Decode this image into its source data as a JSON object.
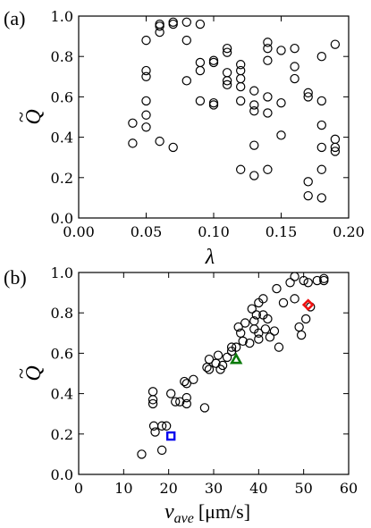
{
  "chart_data": [
    {
      "type": "scatter",
      "panel_label": "(a)",
      "xlabel": "λ",
      "ylabel_main": "Q",
      "ylabel_accent": "~",
      "xlim": [
        0.0,
        0.2
      ],
      "ylim": [
        0.0,
        1.0
      ],
      "xticks": [
        "0.00",
        "0.05",
        "0.10",
        "0.15",
        "0.20"
      ],
      "yticks": [
        "0.0",
        "0.2",
        "0.4",
        "0.6",
        "0.8",
        "1.0"
      ],
      "grid": false,
      "series": [
        {
          "marker": "circle-open",
          "color": "#000000",
          "points": [
            [
              0.04,
              0.47
            ],
            [
              0.04,
              0.37
            ],
            [
              0.05,
              0.88
            ],
            [
              0.05,
              0.73
            ],
            [
              0.05,
              0.7
            ],
            [
              0.05,
              0.58
            ],
            [
              0.05,
              0.51
            ],
            [
              0.05,
              0.45
            ],
            [
              0.06,
              0.96
            ],
            [
              0.06,
              0.95
            ],
            [
              0.06,
              0.92
            ],
            [
              0.06,
              0.38
            ],
            [
              0.07,
              0.97
            ],
            [
              0.07,
              0.96
            ],
            [
              0.07,
              0.35
            ],
            [
              0.08,
              0.97
            ],
            [
              0.08,
              0.88
            ],
            [
              0.08,
              0.68
            ],
            [
              0.09,
              0.96
            ],
            [
              0.09,
              0.77
            ],
            [
              0.09,
              0.73
            ],
            [
              0.09,
              0.58
            ],
            [
              0.1,
              0.78
            ],
            [
              0.1,
              0.77
            ],
            [
              0.1,
              0.57
            ],
            [
              0.1,
              0.56
            ],
            [
              0.11,
              0.84
            ],
            [
              0.11,
              0.82
            ],
            [
              0.11,
              0.72
            ],
            [
              0.11,
              0.68
            ],
            [
              0.11,
              0.66
            ],
            [
              0.12,
              0.76
            ],
            [
              0.12,
              0.73
            ],
            [
              0.12,
              0.69
            ],
            [
              0.12,
              0.65
            ],
            [
              0.12,
              0.58
            ],
            [
              0.12,
              0.24
            ],
            [
              0.13,
              0.63
            ],
            [
              0.13,
              0.56
            ],
            [
              0.13,
              0.53
            ],
            [
              0.13,
              0.36
            ],
            [
              0.13,
              0.21
            ],
            [
              0.14,
              0.87
            ],
            [
              0.14,
              0.84
            ],
            [
              0.14,
              0.78
            ],
            [
              0.14,
              0.6
            ],
            [
              0.14,
              0.52
            ],
            [
              0.14,
              0.24
            ],
            [
              0.15,
              0.83
            ],
            [
              0.15,
              0.57
            ],
            [
              0.15,
              0.41
            ],
            [
              0.16,
              0.84
            ],
            [
              0.16,
              0.75
            ],
            [
              0.16,
              0.69
            ],
            [
              0.17,
              0.62
            ],
            [
              0.17,
              0.6
            ],
            [
              0.17,
              0.18
            ],
            [
              0.17,
              0.11
            ],
            [
              0.18,
              0.8
            ],
            [
              0.18,
              0.58
            ],
            [
              0.18,
              0.46
            ],
            [
              0.18,
              0.35
            ],
            [
              0.18,
              0.24
            ],
            [
              0.18,
              0.1
            ],
            [
              0.19,
              0.86
            ],
            [
              0.19,
              0.39
            ],
            [
              0.19,
              0.35
            ],
            [
              0.19,
              0.33
            ]
          ]
        }
      ]
    },
    {
      "type": "scatter",
      "panel_label": "(b)",
      "xlabel_main": "v",
      "xlabel_sub": "ave",
      "xlabel_unit": "[μm/s]",
      "ylabel_main": "Q",
      "ylabel_accent": "~",
      "xlim": [
        0,
        60
      ],
      "ylim": [
        0.0,
        1.0
      ],
      "xticks": [
        "0",
        "10",
        "20",
        "30",
        "40",
        "50",
        "60"
      ],
      "yticks": [
        "0.0",
        "0.2",
        "0.4",
        "0.6",
        "0.8",
        "1.0"
      ],
      "grid": false,
      "series": [
        {
          "marker": "circle-open",
          "color": "#000000",
          "points": [
            [
              14,
              0.1
            ],
            [
              16.5,
              0.41
            ],
            [
              16.5,
              0.37
            ],
            [
              16.5,
              0.35
            ],
            [
              16.7,
              0.24
            ],
            [
              17,
              0.21
            ],
            [
              18.5,
              0.24
            ],
            [
              18.5,
              0.12
            ],
            [
              19.5,
              0.24
            ],
            [
              20.5,
              0.4
            ],
            [
              21.5,
              0.36
            ],
            [
              22.5,
              0.36
            ],
            [
              23.5,
              0.46
            ],
            [
              24,
              0.45
            ],
            [
              24,
              0.38
            ],
            [
              24,
              0.35
            ],
            [
              25.5,
              0.47
            ],
            [
              28,
              0.33
            ],
            [
              28.5,
              0.53
            ],
            [
              29,
              0.52
            ],
            [
              29,
              0.57
            ],
            [
              30.5,
              0.55
            ],
            [
              31,
              0.59
            ],
            [
              31.5,
              0.52
            ],
            [
              32,
              0.54
            ],
            [
              33,
              0.58
            ],
            [
              34,
              0.63
            ],
            [
              34,
              0.61
            ],
            [
              35,
              0.63
            ],
            [
              35.5,
              0.73
            ],
            [
              36,
              0.7
            ],
            [
              36.5,
              0.66
            ],
            [
              37,
              0.75
            ],
            [
              38,
              0.65
            ],
            [
              38.5,
              0.82
            ],
            [
              39,
              0.72
            ],
            [
              39,
              0.76
            ],
            [
              39.5,
              0.79
            ],
            [
              40,
              0.85
            ],
            [
              40,
              0.7
            ],
            [
              40,
              0.67
            ],
            [
              41,
              0.87
            ],
            [
              41,
              0.79
            ],
            [
              41.5,
              0.72
            ],
            [
              42,
              0.77
            ],
            [
              42.5,
              0.68
            ],
            [
              43.5,
              0.71
            ],
            [
              44,
              0.92
            ],
            [
              44.5,
              0.63
            ],
            [
              45.5,
              0.85
            ],
            [
              47,
              0.95
            ],
            [
              48,
              0.98
            ],
            [
              48,
              0.87
            ],
            [
              49,
              0.73
            ],
            [
              49.5,
              0.69
            ],
            [
              50,
              0.96
            ],
            [
              50.5,
              0.77
            ],
            [
              51,
              0.95
            ],
            [
              51.5,
              0.83
            ],
            [
              53,
              0.96
            ],
            [
              54.5,
              0.97
            ],
            [
              54.5,
              0.96
            ]
          ]
        },
        {
          "marker": "square-open",
          "color": "#0000ee",
          "points": [
            [
              20.5,
              0.19
            ]
          ]
        },
        {
          "marker": "triangle-open",
          "color": "#0a7a0a",
          "points": [
            [
              35,
              0.57
            ]
          ]
        },
        {
          "marker": "diamond-open",
          "color": "#ee1111",
          "points": [
            [
              51,
              0.84
            ]
          ]
        }
      ]
    }
  ]
}
